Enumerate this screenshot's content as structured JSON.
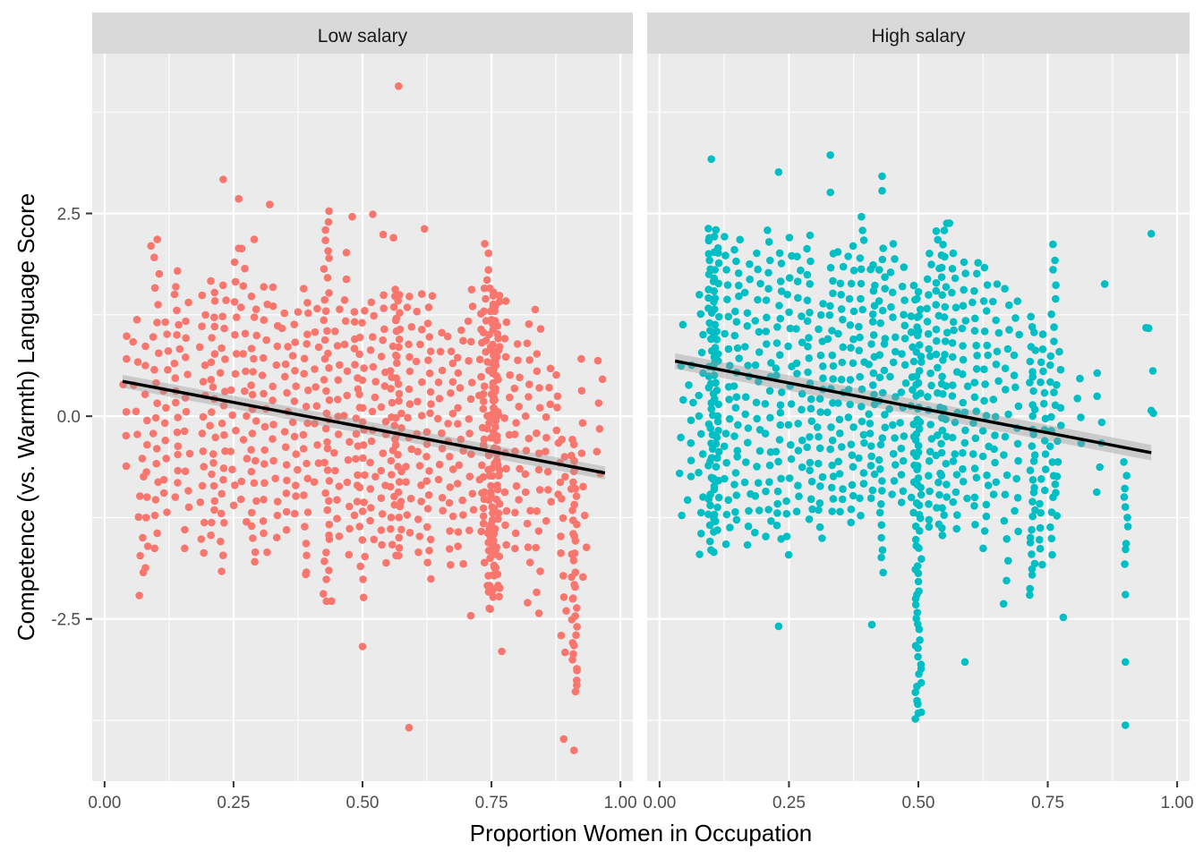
{
  "chart_data": {
    "type": "scatter",
    "title": "",
    "xlabel": "Proportion Women in Occupation",
    "ylabel": "Competence (vs. Warmth) Language Score",
    "xlim": [
      -0.024,
      1.024
    ],
    "ylim": [
      -4.5,
      4.47
    ],
    "x_ticks": [
      0.0,
      0.25,
      0.5,
      0.75,
      1.0
    ],
    "x_tick_labels": [
      "0.00",
      "0.25",
      "0.50",
      "0.75",
      "1.00"
    ],
    "x_minor": [
      0.125,
      0.375,
      0.625,
      0.875
    ],
    "y_ticks": [
      -2.5,
      0.0,
      2.5
    ],
    "y_tick_labels": [
      "-2.5",
      "0.0",
      "2.5"
    ],
    "y_minor": [
      -3.75,
      -1.25,
      1.25,
      3.75
    ],
    "grid": true,
    "facets": [
      {
        "label": "Low salary",
        "color": "#F8766D",
        "fit": {
          "x": [
            0.035,
            0.97
          ],
          "y": [
            0.43,
            -0.7
          ],
          "se": 0.05
        },
        "columns": [
          [
            0.04,
            -0.6,
            1.0,
            6
          ],
          [
            0.06,
            -0.2,
            1.2,
            6
          ],
          [
            0.07,
            -2.2,
            -0.5,
            8
          ],
          [
            0.08,
            -1.9,
            0.9,
            10
          ],
          [
            0.1,
            -1.6,
            2.15,
            20
          ],
          [
            0.12,
            -1.2,
            1.2,
            12
          ],
          [
            0.14,
            -1.0,
            1.8,
            18
          ],
          [
            0.16,
            -1.6,
            1.4,
            14
          ],
          [
            0.19,
            -1.7,
            1.5,
            16
          ],
          [
            0.21,
            -1.5,
            1.7,
            22
          ],
          [
            0.23,
            -1.9,
            1.6,
            20
          ],
          [
            0.25,
            -1.1,
            1.9,
            14
          ],
          [
            0.27,
            -1.3,
            2.1,
            14
          ],
          [
            0.29,
            -1.8,
            1.5,
            22
          ],
          [
            0.31,
            -1.7,
            1.6,
            16
          ],
          [
            0.33,
            -1.5,
            1.6,
            14
          ],
          [
            0.35,
            -1.4,
            1.3,
            14
          ],
          [
            0.37,
            -1.2,
            1.3,
            14
          ],
          [
            0.39,
            -1.9,
            1.6,
            20
          ],
          [
            0.41,
            -0.8,
            1.3,
            10
          ],
          [
            0.43,
            -2.3,
            2.55,
            40
          ],
          [
            0.45,
            -1.5,
            1.3,
            14
          ],
          [
            0.47,
            -1.7,
            2.0,
            14
          ],
          [
            0.49,
            -1.2,
            1.3,
            16
          ],
          [
            0.5,
            -2.2,
            1.3,
            22
          ],
          [
            0.52,
            -1.5,
            1.4,
            16
          ],
          [
            0.54,
            -1.8,
            1.5,
            18
          ],
          [
            0.56,
            -1.7,
            1.6,
            24
          ],
          [
            0.57,
            -1.7,
            1.5,
            30
          ],
          [
            0.59,
            -1.4,
            1.5,
            16
          ],
          [
            0.61,
            -1.7,
            1.5,
            16
          ],
          [
            0.63,
            -2.0,
            1.5,
            22
          ],
          [
            0.65,
            -1.2,
            1.0,
            12
          ],
          [
            0.67,
            -1.8,
            1.0,
            16
          ],
          [
            0.69,
            -1.8,
            1.1,
            16
          ],
          [
            0.71,
            -1.4,
            1.6,
            14
          ],
          [
            0.73,
            -1.4,
            1.3,
            14
          ],
          [
            0.74,
            -2.2,
            2.1,
            34
          ],
          [
            0.75,
            -2.4,
            1.6,
            60
          ],
          [
            0.76,
            -2.2,
            1.5,
            50
          ],
          [
            0.78,
            -1.6,
            1.4,
            14
          ],
          [
            0.8,
            -1.6,
            0.9,
            14
          ],
          [
            0.82,
            -1.8,
            1.1,
            14
          ],
          [
            0.84,
            -2.4,
            1.3,
            16
          ],
          [
            0.86,
            -1.3,
            0.6,
            10
          ],
          [
            0.88,
            -1.0,
            0.5,
            8
          ],
          [
            0.89,
            -2.9,
            -0.3,
            12
          ],
          [
            0.91,
            -3.4,
            -0.3,
            40
          ],
          [
            0.93,
            -2.0,
            0.7,
            8
          ],
          [
            0.96,
            -0.7,
            0.7,
            6
          ]
        ],
        "outliers": [
          [
            0.57,
            4.07
          ],
          [
            0.23,
            2.92
          ],
          [
            0.26,
            2.68
          ],
          [
            0.32,
            2.61
          ],
          [
            0.48,
            2.46
          ],
          [
            0.52,
            2.49
          ],
          [
            0.56,
            2.2
          ],
          [
            0.54,
            2.24
          ],
          [
            0.62,
            2.31
          ],
          [
            0.59,
            -3.84
          ],
          [
            0.5,
            -2.84
          ],
          [
            0.44,
            -2.28
          ],
          [
            0.71,
            -2.46
          ],
          [
            0.77,
            -2.9
          ],
          [
            0.89,
            -3.98
          ],
          [
            0.91,
            -4.12
          ],
          [
            0.39,
            -1.95
          ],
          [
            0.82,
            -2.3
          ],
          [
            0.09,
            2.1
          ],
          [
            0.29,
            2.18
          ],
          [
            0.26,
            2.07
          ]
        ]
      },
      {
        "label": "High salary",
        "color": "#00BFC4",
        "fit": {
          "x": [
            0.03,
            0.95
          ],
          "y": [
            0.68,
            -0.45
          ],
          "se": 0.06
        },
        "columns": [
          [
            0.04,
            -1.2,
            1.1,
            6
          ],
          [
            0.06,
            -1.0,
            0.6,
            8
          ],
          [
            0.08,
            -1.7,
            1.5,
            14
          ],
          [
            0.1,
            -1.7,
            2.3,
            50
          ],
          [
            0.11,
            -1.4,
            2.3,
            40
          ],
          [
            0.13,
            -1.6,
            2.2,
            20
          ],
          [
            0.15,
            -1.3,
            2.2,
            24
          ],
          [
            0.17,
            -1.6,
            1.9,
            18
          ],
          [
            0.19,
            -1.4,
            2.0,
            18
          ],
          [
            0.21,
            -1.5,
            2.3,
            22
          ],
          [
            0.23,
            -1.5,
            2.0,
            24
          ],
          [
            0.25,
            -1.7,
            2.2,
            18
          ],
          [
            0.27,
            -1.2,
            2.0,
            18
          ],
          [
            0.29,
            -1.3,
            2.2,
            24
          ],
          [
            0.31,
            -1.5,
            1.4,
            20
          ],
          [
            0.33,
            -1.2,
            2.0,
            22
          ],
          [
            0.35,
            -1.2,
            2.0,
            20
          ],
          [
            0.37,
            -1.3,
            2.1,
            22
          ],
          [
            0.39,
            -1.2,
            2.3,
            22
          ],
          [
            0.41,
            -1.0,
            1.9,
            24
          ],
          [
            0.43,
            -1.9,
            2.1,
            30
          ],
          [
            0.45,
            -1.0,
            2.1,
            18
          ],
          [
            0.47,
            -1.1,
            1.8,
            18
          ],
          [
            0.49,
            -1.2,
            1.6,
            16
          ],
          [
            0.5,
            -3.7,
            1.5,
            70
          ],
          [
            0.52,
            -1.4,
            2.0,
            22
          ],
          [
            0.54,
            -1.3,
            2.3,
            24
          ],
          [
            0.55,
            -1.5,
            2.4,
            30
          ],
          [
            0.57,
            -1.4,
            2.0,
            22
          ],
          [
            0.59,
            -1.0,
            1.9,
            18
          ],
          [
            0.61,
            -1.3,
            1.9,
            20
          ],
          [
            0.63,
            -1.6,
            1.8,
            20
          ],
          [
            0.65,
            -1.0,
            1.6,
            14
          ],
          [
            0.67,
            -2.3,
            1.6,
            16
          ],
          [
            0.69,
            -1.4,
            1.4,
            14
          ],
          [
            0.72,
            -2.2,
            1.2,
            34
          ],
          [
            0.74,
            -1.8,
            1.0,
            20
          ],
          [
            0.76,
            -1.7,
            2.1,
            24
          ],
          [
            0.77,
            -1.2,
            0.8,
            10
          ],
          [
            0.81,
            -0.3,
            0.5,
            4
          ],
          [
            0.85,
            -0.9,
            0.5,
            6
          ],
          [
            0.9,
            -1.8,
            -0.6,
            10
          ],
          [
            0.95,
            0.07,
            1.1,
            3
          ]
        ],
        "outliers": [
          [
            0.33,
            3.22
          ],
          [
            0.1,
            3.17
          ],
          [
            0.23,
            3.01
          ],
          [
            0.43,
            2.96
          ],
          [
            0.33,
            2.76
          ],
          [
            0.43,
            2.78
          ],
          [
            0.39,
            2.46
          ],
          [
            0.56,
            2.38
          ],
          [
            0.95,
            2.25
          ],
          [
            0.86,
            1.63
          ],
          [
            0.5,
            -3.66
          ],
          [
            0.23,
            -2.59
          ],
          [
            0.41,
            -2.57
          ],
          [
            0.59,
            -3.03
          ],
          [
            0.9,
            -3.03
          ],
          [
            0.9,
            -3.81
          ],
          [
            0.9,
            -2.2
          ],
          [
            0.78,
            -2.48
          ],
          [
            0.94,
            1.09
          ],
          [
            0.95,
            0.07
          ]
        ]
      }
    ]
  }
}
